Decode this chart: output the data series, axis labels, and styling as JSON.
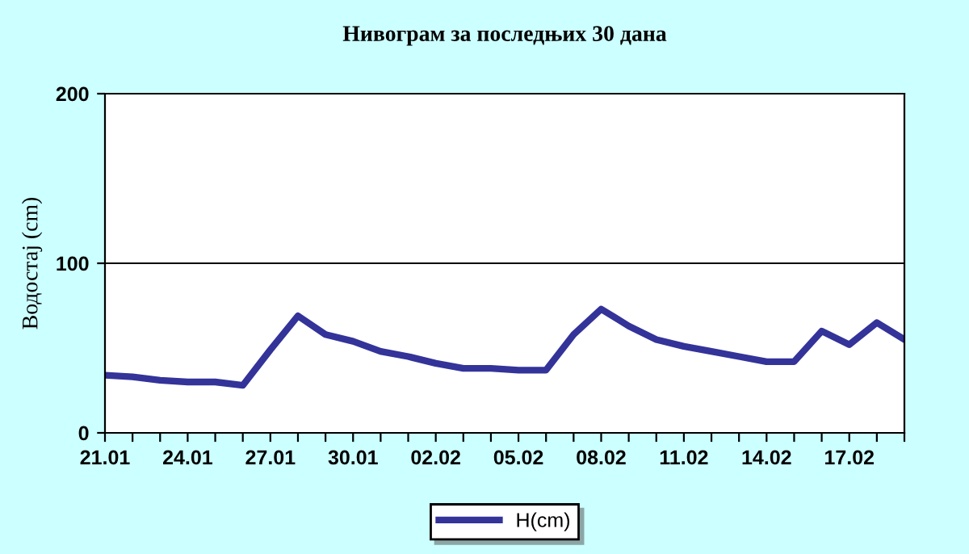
{
  "chart_data": {
    "type": "line",
    "title": "Нивограм за последњих 30 дана",
    "ylabel": "Водостај (cm)",
    "categories": [
      "21.01",
      null,
      null,
      "24.01",
      null,
      null,
      "27.01",
      null,
      null,
      "30.01",
      null,
      null,
      "02.02",
      null,
      null,
      "05.02",
      null,
      null,
      "08.02",
      null,
      null,
      "11.02",
      null,
      null,
      "14.02",
      null,
      null,
      "17.02",
      null,
      null
    ],
    "series": [
      {
        "name": "H(cm)",
        "color": "#333399",
        "values": [
          34,
          33,
          31,
          30,
          30,
          28,
          49,
          69,
          58,
          54,
          48,
          45,
          41,
          38,
          38,
          37,
          37,
          58,
          73,
          63,
          55,
          51,
          48,
          45,
          42,
          42,
          60,
          52,
          65,
          55
        ]
      }
    ],
    "ylim": [
      0,
      200
    ],
    "yticks": [
      0,
      100,
      200
    ],
    "grid": "y",
    "legend": "bottom",
    "marker": "none",
    "line_style": "solid"
  }
}
